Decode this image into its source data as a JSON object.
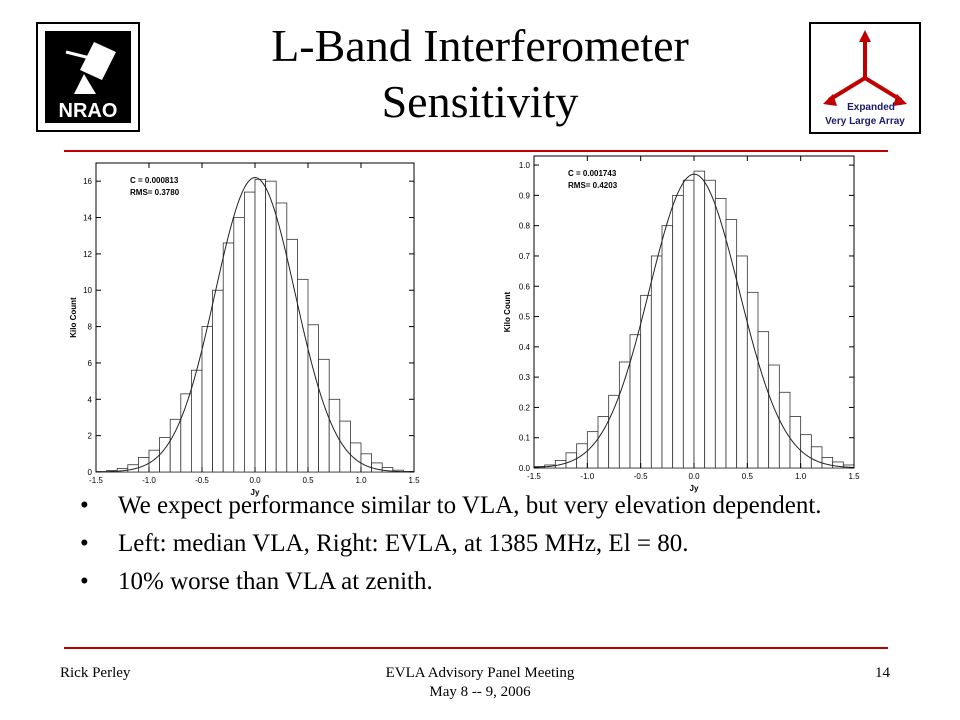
{
  "slide": {
    "title_line1": "L-Band Interferometer",
    "title_line2": "Sensitivity",
    "logo_left_text": "NRAO",
    "logo_right_line1": "Expanded",
    "logo_right_line2": "Very Large Array",
    "accent_color": "#c00000",
    "bullets": [
      "We expect performance similar to VLA, but very elevation dependent.",
      "Left:  median VLA, Right:  EVLA, at 1385 MHz, El = 80.",
      "10% worse than VLA at zenith."
    ],
    "bullet_glyph": "•",
    "footer_left": "Rick Perley",
    "footer_center_line1": "EVLA Advisory Panel Meeting",
    "footer_center_line2": "May 8 -- 9, 2006",
    "footer_right": "14"
  },
  "chart_data": [
    {
      "type": "bar",
      "ylabel": "Kilo Count",
      "xlabel": "Jy",
      "xlim": [
        -1.5,
        1.5
      ],
      "ylim": [
        0,
        17
      ],
      "xticks": [
        "-1.5",
        "-1.0",
        "-0.5",
        "0.0",
        "0.5",
        "1.0",
        "1.5"
      ],
      "yticks": [
        "0",
        "2",
        "4",
        "6",
        "8",
        "10",
        "12",
        "14",
        "16"
      ],
      "annotation_c": "C = 0.000813",
      "annotation_rms": "RMS= 0.3780",
      "bin_width": 0.1,
      "bin_centers": [
        -1.45,
        -1.35,
        -1.25,
        -1.15,
        -1.05,
        -0.95,
        -0.85,
        -0.75,
        -0.65,
        -0.55,
        -0.45,
        -0.35,
        -0.25,
        -0.15,
        -0.05,
        0.05,
        0.15,
        0.25,
        0.35,
        0.45,
        0.55,
        0.65,
        0.75,
        0.85,
        0.95,
        1.05,
        1.15,
        1.25,
        1.35,
        1.45
      ],
      "values": [
        0.02,
        0.08,
        0.2,
        0.4,
        0.8,
        1.2,
        1.9,
        2.9,
        4.3,
        5.6,
        8.0,
        10.0,
        12.6,
        14.0,
        15.4,
        16.1,
        16.0,
        14.8,
        12.8,
        10.6,
        8.1,
        6.2,
        4.0,
        2.8,
        1.6,
        1.0,
        0.5,
        0.25,
        0.1,
        0.03
      ],
      "fit": {
        "type": "gaussian",
        "center": 0.000813,
        "sigma": 0.378,
        "peak": 16.2
      }
    },
    {
      "type": "bar",
      "ylabel": "Kilo Count",
      "xlabel": "Jy",
      "xlim": [
        -1.5,
        1.5
      ],
      "ylim": [
        0,
        1.03
      ],
      "xticks": [
        "-1.5",
        "-1.0",
        "-0.5",
        "0.0",
        "0.5",
        "1.0",
        "1.5"
      ],
      "yticks": [
        "0.0",
        "0.1",
        "0.2",
        "0.3",
        "0.4",
        "0.5",
        "0.6",
        "0.7",
        "0.8",
        "0.9",
        "1.0"
      ],
      "annotation_c": "C = 0.001743",
      "annotation_rms": "RMS= 0.4203",
      "bin_width": 0.1,
      "bin_centers": [
        -1.45,
        -1.35,
        -1.25,
        -1.15,
        -1.05,
        -0.95,
        -0.85,
        -0.75,
        -0.65,
        -0.55,
        -0.45,
        -0.35,
        -0.25,
        -0.15,
        -0.05,
        0.05,
        0.15,
        0.25,
        0.35,
        0.45,
        0.55,
        0.65,
        0.75,
        0.85,
        0.95,
        1.05,
        1.15,
        1.25,
        1.35,
        1.45
      ],
      "values": [
        0.005,
        0.01,
        0.025,
        0.05,
        0.08,
        0.12,
        0.17,
        0.24,
        0.35,
        0.44,
        0.57,
        0.7,
        0.8,
        0.9,
        0.95,
        0.98,
        0.95,
        0.89,
        0.82,
        0.7,
        0.58,
        0.45,
        0.34,
        0.25,
        0.17,
        0.11,
        0.07,
        0.035,
        0.02,
        0.01
      ],
      "fit": {
        "type": "gaussian",
        "center": 0.001743,
        "sigma": 0.4203,
        "peak": 0.97
      }
    }
  ]
}
